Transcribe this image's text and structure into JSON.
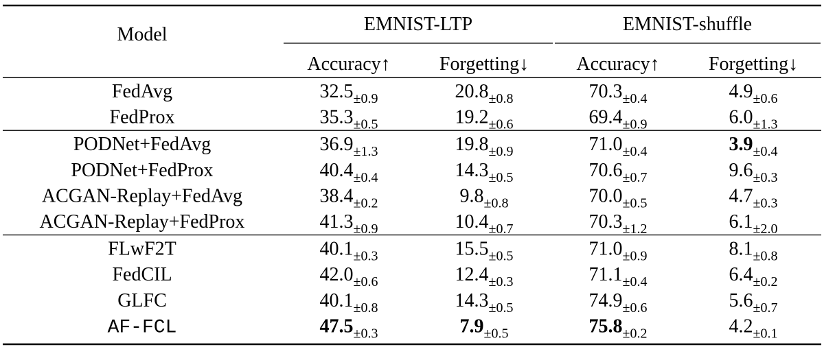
{
  "header": {
    "model": "Model",
    "groups": [
      "EMNIST-LTP",
      "EMNIST-shuffle"
    ],
    "columns": [
      "Accuracy↑",
      "Forgetting↓",
      "Accuracy↑",
      "Forgetting↓"
    ]
  },
  "table": {
    "sections": [
      [
        {
          "model": "FedAvg",
          "cells": [
            {
              "value": "32.5",
              "std": "±0.9"
            },
            {
              "value": "20.8",
              "std": "±0.8"
            },
            {
              "value": "70.3",
              "std": "±0.4"
            },
            {
              "value": "4.9",
              "std": "±0.6"
            }
          ]
        },
        {
          "model": "FedProx",
          "cells": [
            {
              "value": "35.3",
              "std": "±0.5"
            },
            {
              "value": "19.2",
              "std": "±0.6"
            },
            {
              "value": "69.4",
              "std": "±0.9"
            },
            {
              "value": "6.0",
              "std": "±1.3"
            }
          ]
        }
      ],
      [
        {
          "model": "PODNet+FedAvg",
          "cells": [
            {
              "value": "36.9",
              "std": "±1.3"
            },
            {
              "value": "19.8",
              "std": "±0.9"
            },
            {
              "value": "71.0",
              "std": "±0.4"
            },
            {
              "value": "3.9",
              "std": "±0.4",
              "bold": true
            }
          ]
        },
        {
          "model": "PODNet+FedProx",
          "cells": [
            {
              "value": "40.4",
              "std": "±0.4"
            },
            {
              "value": "14.3",
              "std": "±0.5"
            },
            {
              "value": "70.6",
              "std": "±0.7"
            },
            {
              "value": "9.6",
              "std": "±0.3"
            }
          ]
        },
        {
          "model": "ACGAN-Replay+FedAvg",
          "cells": [
            {
              "value": "38.4",
              "std": "±0.2"
            },
            {
              "value": "9.8",
              "std": "±0.8"
            },
            {
              "value": "70.0",
              "std": "±0.5"
            },
            {
              "value": "4.7",
              "std": "±0.3"
            }
          ]
        },
        {
          "model": "ACGAN-Replay+FedProx",
          "cells": [
            {
              "value": "41.3",
              "std": "±0.9"
            },
            {
              "value": "10.4",
              "std": "±0.7"
            },
            {
              "value": "70.3",
              "std": "±1.2"
            },
            {
              "value": "6.1",
              "std": "±2.0"
            }
          ]
        }
      ],
      [
        {
          "model": "FLwF2T",
          "cells": [
            {
              "value": "40.1",
              "std": "±0.3"
            },
            {
              "value": "15.5",
              "std": "±0.5"
            },
            {
              "value": "71.0",
              "std": "±0.9"
            },
            {
              "value": "8.1",
              "std": "±0.8"
            }
          ]
        },
        {
          "model": "FedCIL",
          "cells": [
            {
              "value": "42.0",
              "std": "±0.6"
            },
            {
              "value": "12.4",
              "std": "±0.3"
            },
            {
              "value": "71.1",
              "std": "±0.4"
            },
            {
              "value": "6.4",
              "std": "±0.2"
            }
          ]
        },
        {
          "model": "GLFC",
          "cells": [
            {
              "value": "40.1",
              "std": "±0.8"
            },
            {
              "value": "14.3",
              "std": "±0.5"
            },
            {
              "value": "74.9",
              "std": "±0.6"
            },
            {
              "value": "5.6",
              "std": "±0.7"
            }
          ]
        },
        {
          "model": "AF-FCL",
          "model_font": "monospace",
          "cells": [
            {
              "value": "47.5",
              "std": "±0.3",
              "bold": true
            },
            {
              "value": "7.9",
              "std": "±0.5",
              "bold": true
            },
            {
              "value": "75.8",
              "std": "±0.2",
              "bold": true
            },
            {
              "value": "4.2",
              "std": "±0.1"
            }
          ]
        }
      ]
    ]
  }
}
